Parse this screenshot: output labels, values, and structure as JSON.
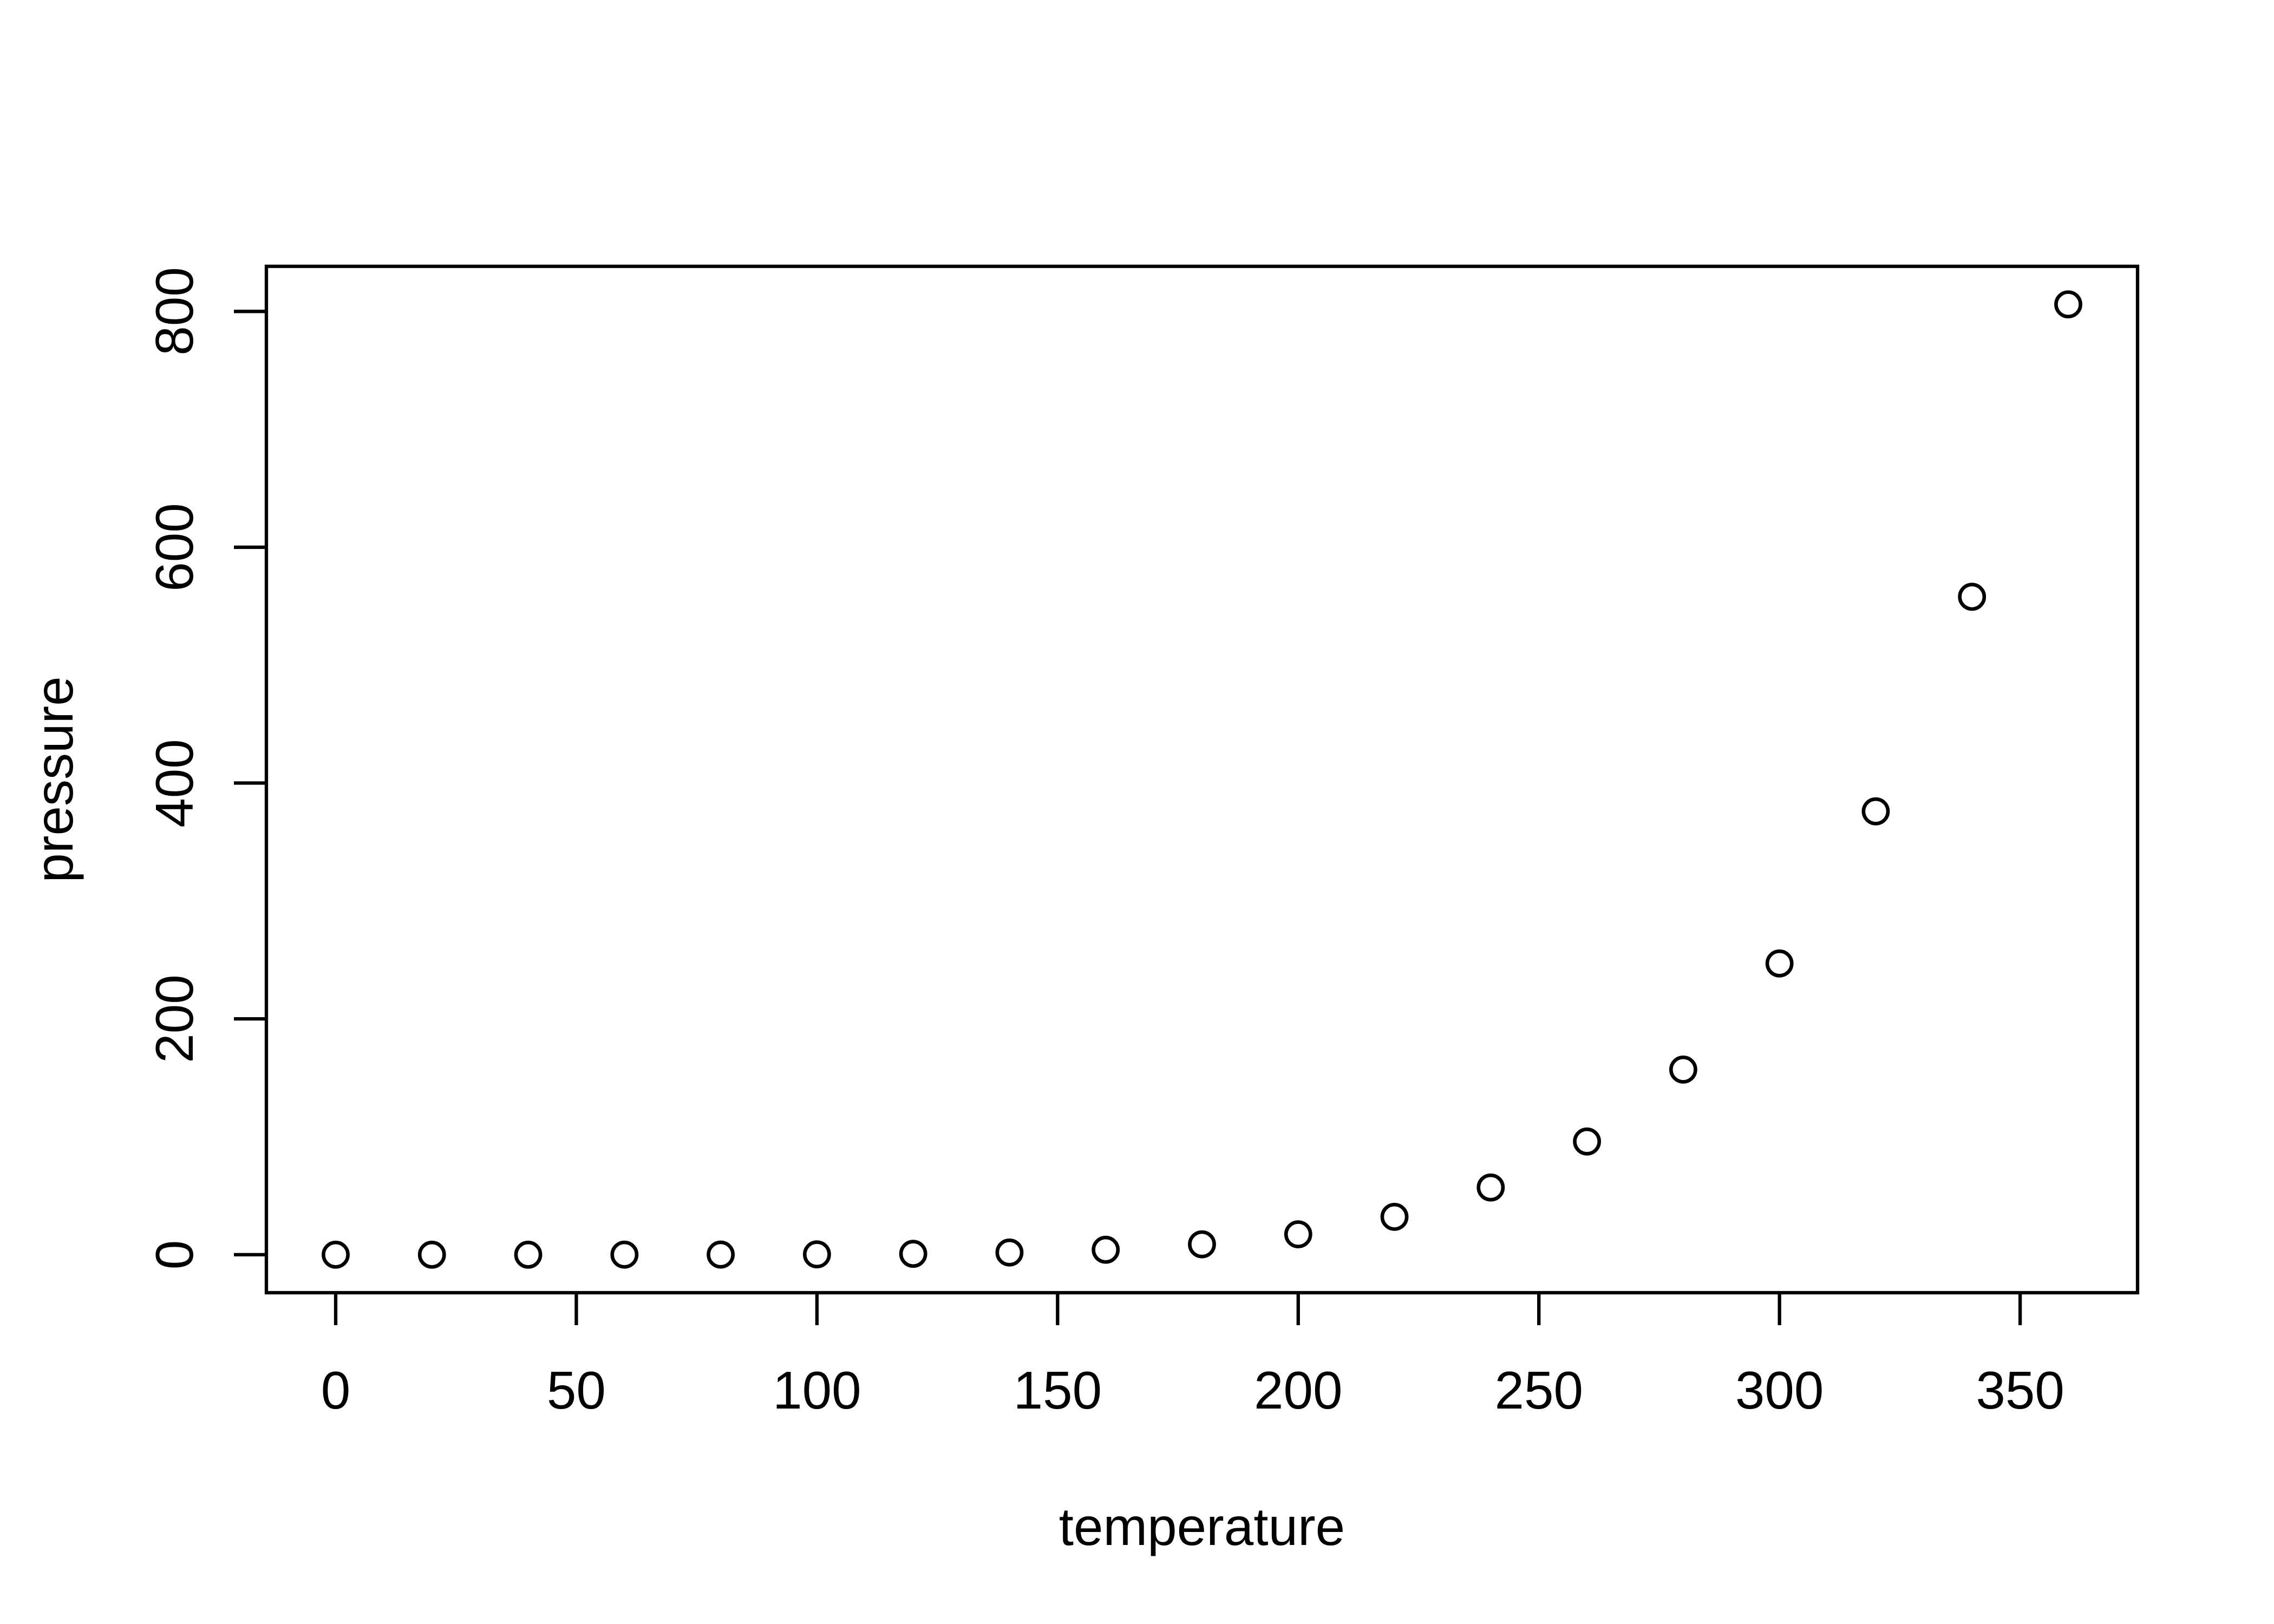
{
  "figure": {
    "background": "#ffffff",
    "foreground": "#000000"
  },
  "chart_data": {
    "type": "scatter",
    "title": "",
    "xlabel": "temperature",
    "ylabel": "pressure",
    "x": [
      0,
      20,
      40,
      60,
      80,
      100,
      120,
      140,
      160,
      180,
      200,
      220,
      240,
      260,
      280,
      300,
      320,
      340,
      360
    ],
    "y": [
      0.0002,
      0.0012,
      0.006,
      0.03,
      0.09,
      0.27,
      0.75,
      1.85,
      4.2,
      8.8,
      17.3,
      32.1,
      57,
      96,
      157,
      247,
      376,
      558,
      806
    ],
    "x_ticks": [
      0,
      50,
      100,
      150,
      200,
      250,
      300,
      350
    ],
    "y_ticks": [
      0,
      200,
      400,
      600,
      800
    ],
    "xlim": [
      -14.4,
      374.4
    ],
    "ylim": [
      -32.24,
      838.24
    ],
    "grid": false,
    "legend": false,
    "marker": "open-circle",
    "marker_color": "#000000"
  }
}
